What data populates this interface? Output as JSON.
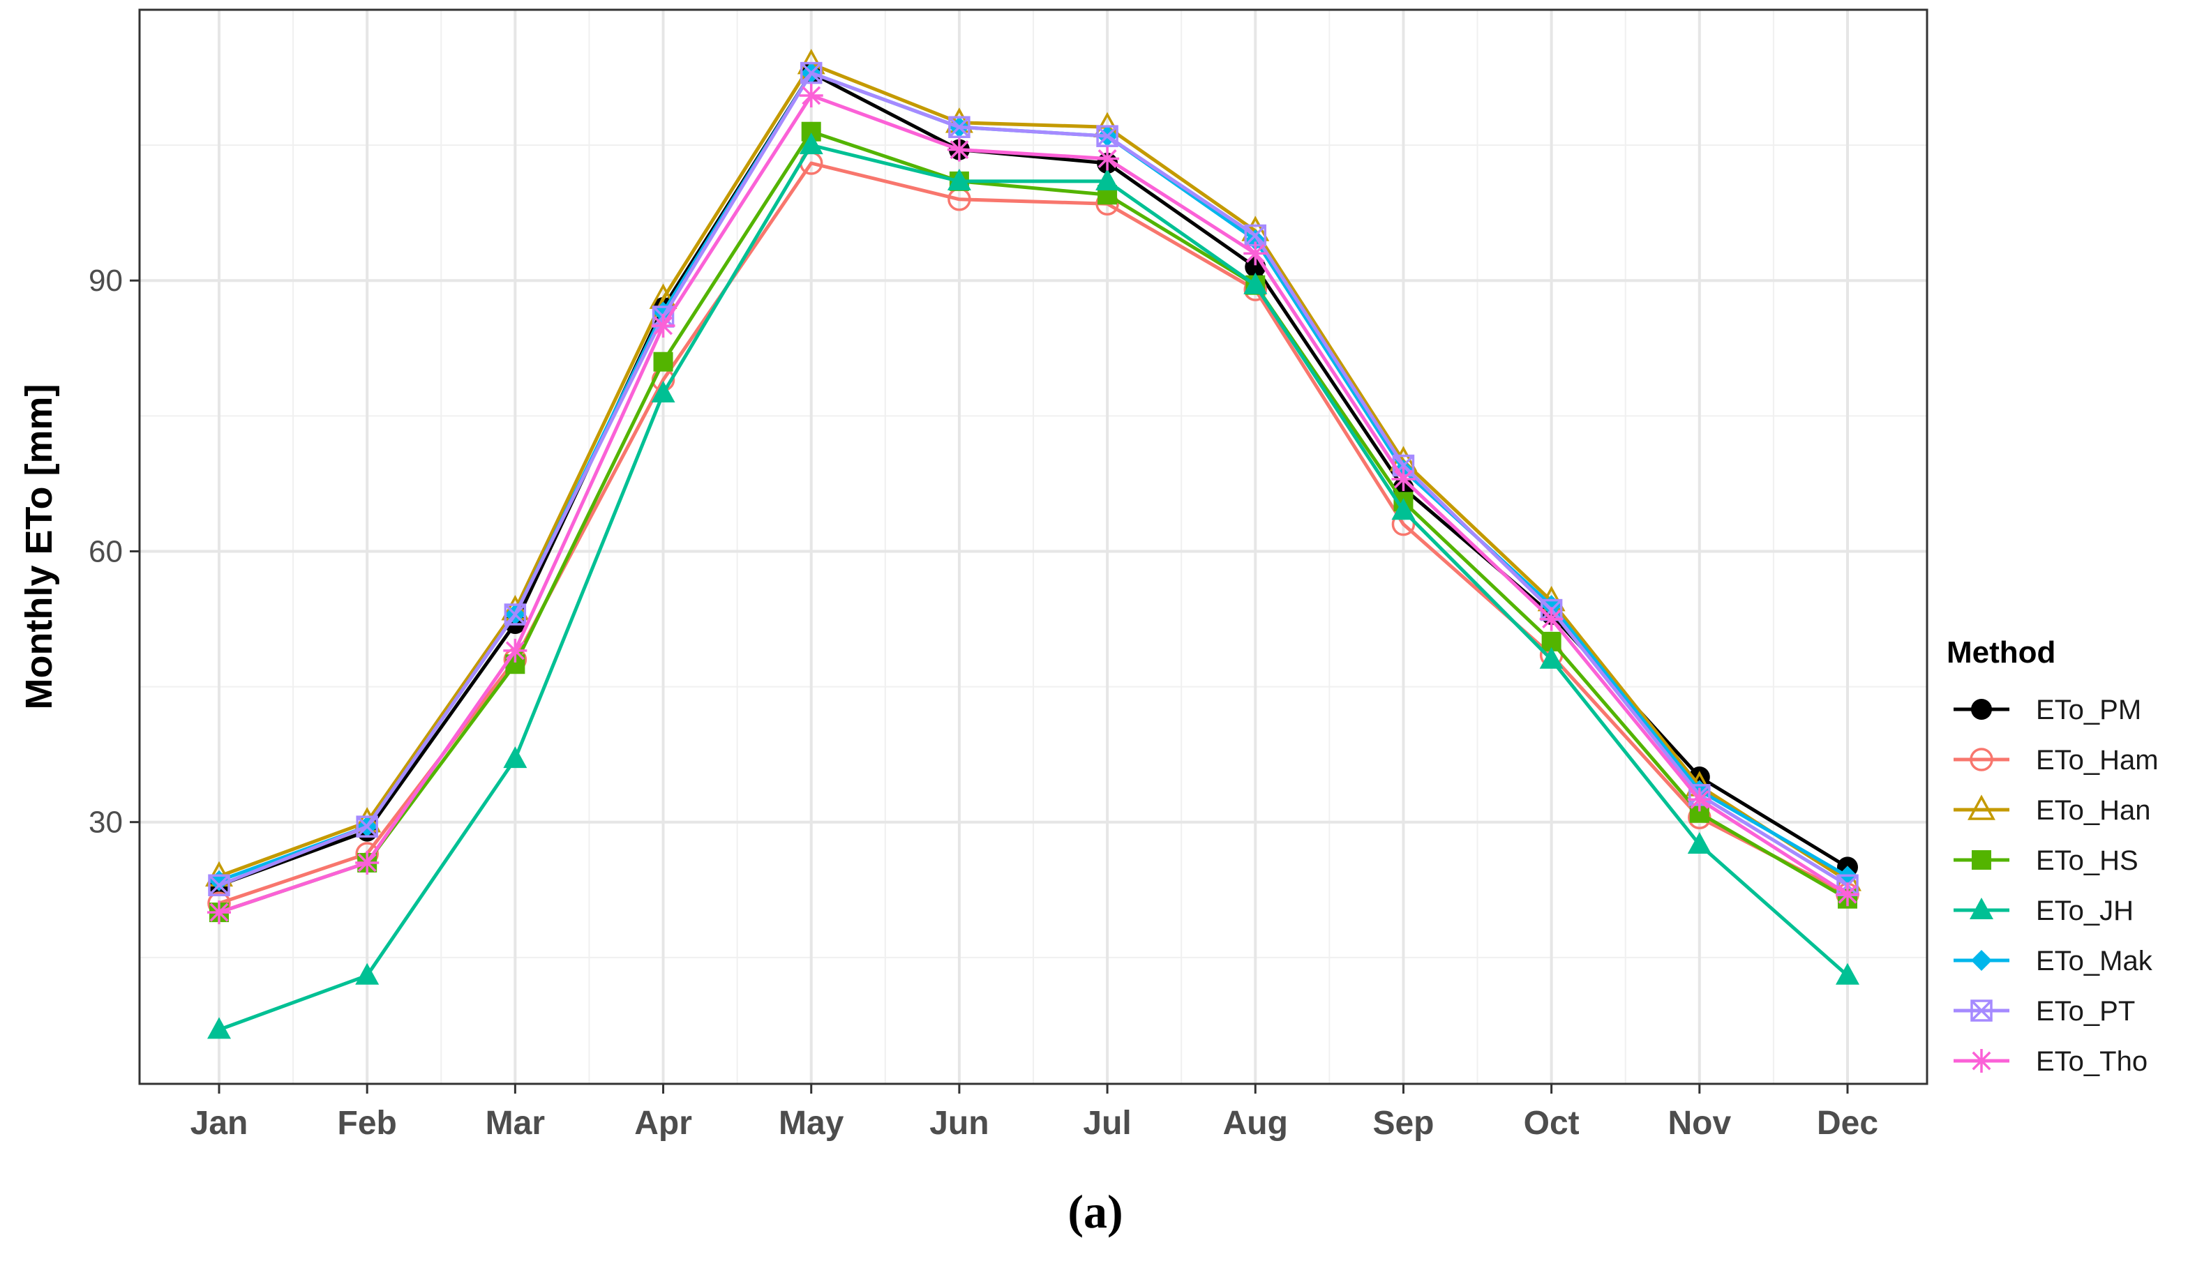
{
  "chart_data": {
    "type": "line",
    "title": "",
    "caption": "(a)",
    "xlabel": "",
    "ylabel": "Monthly ETo [mm]",
    "ylim": [
      1,
      120
    ],
    "y_ticks": [
      30,
      60,
      90
    ],
    "grid": true,
    "legend_title": "Method",
    "legend_position": "right",
    "categories": [
      "Jan",
      "Feb",
      "Mar",
      "Apr",
      "May",
      "Jun",
      "Jul",
      "Aug",
      "Sep",
      "Oct",
      "Nov",
      "Dec"
    ],
    "series": [
      {
        "name": "ETo_PM",
        "color": "#000000",
        "marker": "circle-filled",
        "values": [
          23,
          29,
          52,
          87,
          113,
          104.5,
          103,
          91.5,
          67,
          53,
          35,
          25
        ]
      },
      {
        "name": "ETo_Ham",
        "color": "#F8766D",
        "marker": "circle-open",
        "values": [
          21,
          26.5,
          48,
          79,
          103,
          99,
          98.5,
          89,
          63,
          48.5,
          30.5,
          22
        ]
      },
      {
        "name": "ETo_Han",
        "color": "#C49A00",
        "marker": "triangle-open",
        "values": [
          24,
          30,
          53.5,
          88,
          114,
          107.5,
          107,
          95.5,
          70,
          54.5,
          34,
          23.5
        ]
      },
      {
        "name": "ETo_HS",
        "color": "#53B400",
        "marker": "square-filled",
        "values": [
          20,
          25.5,
          47.5,
          81,
          106.5,
          101,
          99.5,
          89.5,
          65.5,
          50,
          31,
          21.5
        ]
      },
      {
        "name": "ETo_JH",
        "color": "#00C094",
        "marker": "triangle-filled",
        "values": [
          7,
          13,
          37,
          77.5,
          105,
          101,
          101,
          89.5,
          64.5,
          48,
          27.5,
          13
        ]
      },
      {
        "name": "ETo_Mak",
        "color": "#00B6EB",
        "marker": "diamond-filled",
        "values": [
          23.5,
          29.5,
          53,
          86.5,
          113,
          107,
          106,
          94.5,
          69,
          54,
          33.5,
          24
        ]
      },
      {
        "name": "ETo_PT",
        "color": "#A58AFF",
        "marker": "square-x",
        "values": [
          23,
          29.5,
          53,
          86,
          113,
          107,
          106,
          95,
          69.5,
          53.5,
          33,
          23
        ]
      },
      {
        "name": "ETo_Tho",
        "color": "#FB61D7",
        "marker": "asterisk",
        "values": [
          20,
          25.5,
          49,
          85,
          110.5,
          104.5,
          103.5,
          93,
          68,
          52.5,
          32.5,
          22
        ]
      }
    ]
  }
}
